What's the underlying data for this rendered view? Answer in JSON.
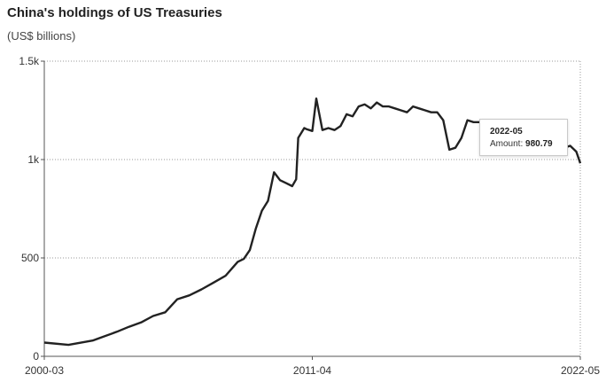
{
  "chart_data": {
    "type": "line",
    "title": "China's holdings of US Treasuries",
    "subtitle": "(US$ billions)",
    "xlabel": "",
    "ylabel": "",
    "ylim": [
      0,
      1500
    ],
    "y_ticks": [
      {
        "value": 0,
        "label": "0"
      },
      {
        "value": 500,
        "label": "500"
      },
      {
        "value": 1000,
        "label": "1k"
      },
      {
        "value": 1500,
        "label": "1.5k"
      }
    ],
    "x_ticks": [
      "2000-03",
      "2011-04",
      "2022-05"
    ],
    "grid": "horizontal dotted",
    "line_color": "#222222",
    "series": [
      {
        "x": [
          "2000-03",
          "2001-03",
          "2002-03",
          "2003-03",
          "2003-09",
          "2004-03",
          "2004-09",
          "2005-03",
          "2005-09",
          "2006-03",
          "2006-09",
          "2007-03",
          "2007-09",
          "2008-03",
          "2008-06",
          "2008-09",
          "2008-12",
          "2009-03",
          "2009-06",
          "2009-09",
          "2009-12",
          "2010-03",
          "2010-06",
          "2010-08",
          "2010-09",
          "2010-12",
          "2011-01",
          "2011-04",
          "2011-06",
          "2011-09",
          "2011-12",
          "2012-03",
          "2012-06",
          "2012-09",
          "2012-12",
          "2013-03",
          "2013-06",
          "2013-09",
          "2013-12",
          "2014-03",
          "2014-06",
          "2014-09",
          "2014-12",
          "2015-03",
          "2015-06",
          "2015-09",
          "2015-12",
          "2016-03",
          "2016-06",
          "2016-09",
          "2016-12",
          "2017-03",
          "2017-06",
          "2017-09",
          "2017-12",
          "2018-03",
          "2018-06",
          "2018-09",
          "2018-12",
          "2019-03",
          "2019-06",
          "2019-09",
          "2019-12",
          "2020-03",
          "2020-06",
          "2020-09",
          "2020-12",
          "2021-03",
          "2021-06",
          "2021-09",
          "2021-12",
          "2022-03",
          "2022-05"
        ],
        "values": [
          70,
          58,
          80,
          125,
          150,
          172,
          205,
          224,
          290,
          310,
          340,
          375,
          410,
          480,
          495,
          540,
          650,
          740,
          790,
          935,
          895,
          880,
          865,
          900,
          1110,
          1160,
          1155,
          1145,
          1310,
          1150,
          1160,
          1150,
          1170,
          1230,
          1220,
          1270,
          1280,
          1260,
          1290,
          1270,
          1270,
          1260,
          1250,
          1240,
          1270,
          1260,
          1250,
          1240,
          1240,
          1200,
          1050,
          1060,
          1110,
          1200,
          1190,
          1190,
          1160,
          1160,
          1125,
          1125,
          1110,
          1100,
          1070,
          1080,
          1080,
          1060,
          1060,
          1080,
          1060,
          1060,
          1070,
          1040,
          981
        ]
      }
    ]
  },
  "tooltip": {
    "date": "2022-05",
    "label": "Amount:",
    "value": "980.79"
  }
}
